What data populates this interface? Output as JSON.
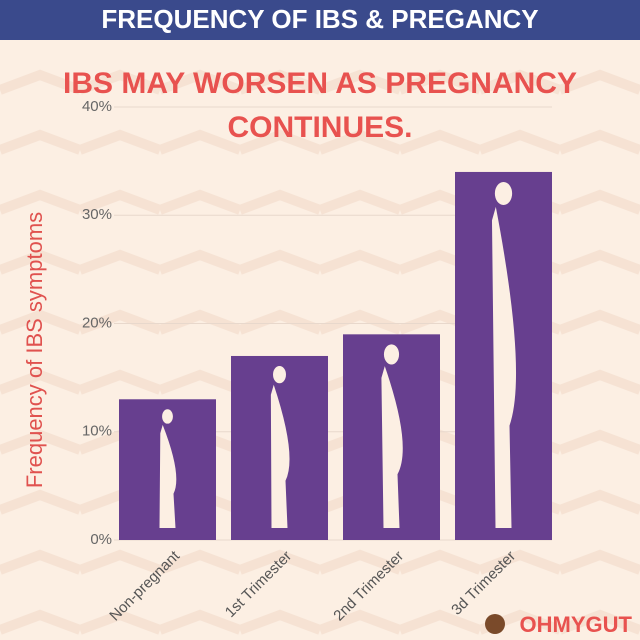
{
  "chart_data": {
    "type": "bar",
    "title": "FREQUENCY OF IBS & PREGANCY",
    "subtitle": "IBS MAY WORSEN AS PREGNANCY CONTINUES.",
    "y_label": "Frequency of IBS symptoms",
    "categories": [
      "Non-pregnant",
      "1st Trimester",
      "2nd Trimester",
      "3d Trimester"
    ],
    "values": [
      13,
      17,
      19,
      34
    ],
    "color": "#673f8f",
    "ylim": [
      0,
      40
    ],
    "yticks": [
      {
        "value": 0,
        "label": "0%"
      },
      {
        "value": 10,
        "label": "10%"
      },
      {
        "value": 20,
        "label": "20%"
      },
      {
        "value": 30,
        "label": "30%"
      },
      {
        "value": 40,
        "label": "40%"
      }
    ],
    "grid": true,
    "brand": "OHMYGUT"
  }
}
